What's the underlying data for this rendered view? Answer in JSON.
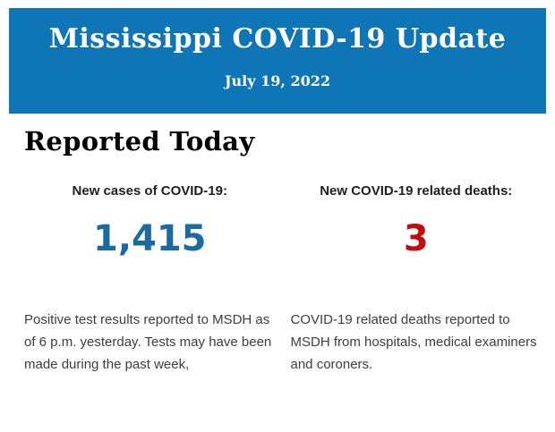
{
  "banner": {
    "title": "Mississippi COVID-19 Update",
    "date": "July 19, 2022",
    "background_color": "#0e75b7",
    "text_color": "#ffffff"
  },
  "section": {
    "heading": "Reported Today"
  },
  "stats": {
    "cases": {
      "label": "New cases of COVID-19:",
      "value": "1,415",
      "value_color": "#1c6ba0",
      "description": "Positive test results reported to MSDH as of 6 p.m. yesterday. Tests may have been made during the past week,"
    },
    "deaths": {
      "label": "New COVID-19 related deaths:",
      "value": "3",
      "value_color": "#c00d0d",
      "description": "COVID-19 related deaths reported to MSDH from hospitals, medical examiners and coroners."
    }
  }
}
